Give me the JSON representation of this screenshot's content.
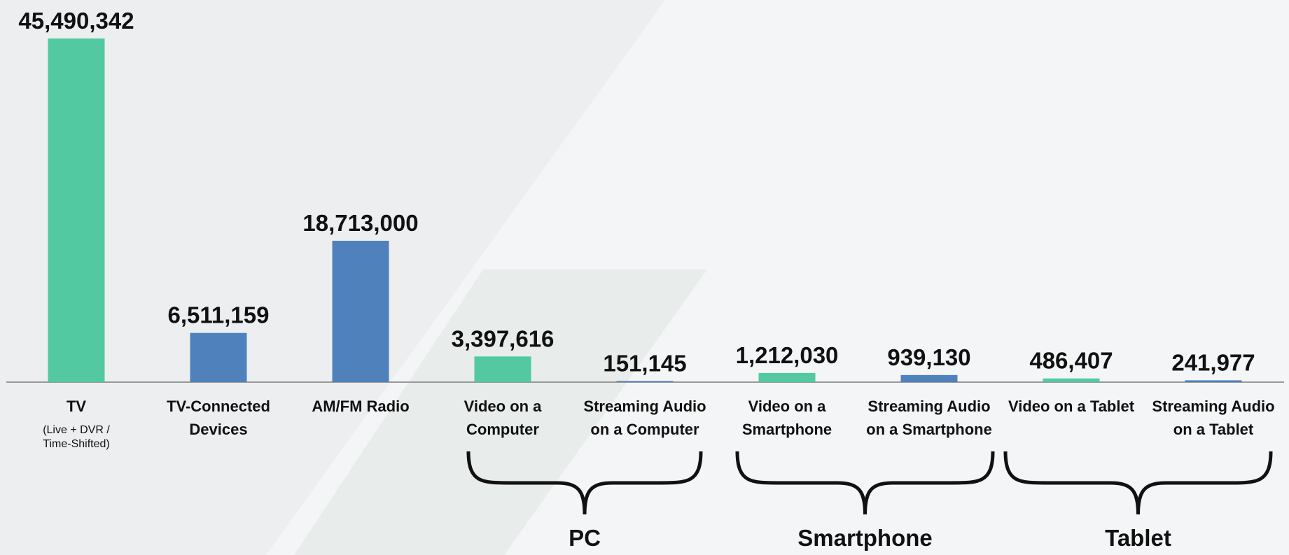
{
  "chart_data": {
    "type": "bar",
    "categories": [
      "TV",
      "TV-Connected\nDevices",
      "AM/FM Radio",
      "Video on a\nComputer",
      "Streaming Audio\non a Computer",
      "Video on a\nSmartphone",
      "Streaming Audio\non a Smartphone",
      "Video on a Tablet",
      "Streaming Audio\non a Tablet"
    ],
    "values": [
      45490342,
      6511159,
      18713000,
      3397616,
      151145,
      1212030,
      939130,
      486407,
      241977
    ],
    "value_labels": [
      "45,490,342",
      "6,511,159",
      "18,713,000",
      "3,397,616",
      "151,145",
      "1,212,030",
      "939,130",
      "486,407",
      "241,977"
    ],
    "colors": [
      "#52c9a0",
      "#4f81bd",
      "#4f81bd",
      "#52c9a0",
      "#4f81bd",
      "#52c9a0",
      "#4f81bd",
      "#52c9a0",
      "#4f81bd"
    ],
    "annotations": [
      "(Live + DVR /\nTime-Shifted)"
    ],
    "groups": [
      "PC",
      "Smartphone",
      "Tablet"
    ]
  }
}
